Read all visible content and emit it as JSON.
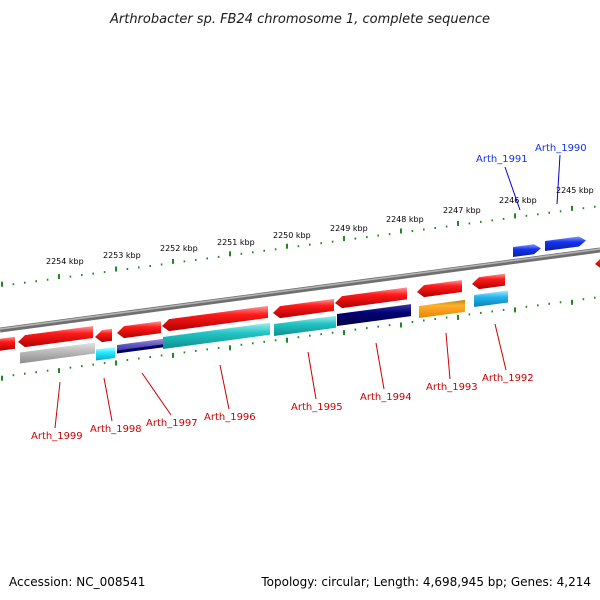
{
  "title": "Arthrobacter sp. FB24 chromosome 1, complete sequence",
  "footer": {
    "accession": "Accession: NC_008541",
    "summary": "Topology: circular; Length: 4,698,945 bp; Genes: 4,214"
  },
  "colors": {
    "backbone": "#888888",
    "tick": "#228822",
    "forward_gene": "#1133ee",
    "reverse_gene": "#ee1111",
    "reverse_label": "#cc0000",
    "forward_label": "#0000cc"
  },
  "kbp_labels": [
    "2254 kbp",
    "2253 kbp",
    "2252 kbp",
    "2251 kbp",
    "2250 kbp",
    "2249 kbp",
    "2248 kbp",
    "2247 kbp",
    "2246 kbp",
    "2245 kbp"
  ],
  "forward_genes": [
    {
      "label": "Arth_1991",
      "color": "#1133ee"
    },
    {
      "label": "Arth_1990",
      "color": "#1133ee"
    }
  ],
  "reverse_genes": [
    {
      "label": "Arth_1999"
    },
    {
      "label": "Arth_1998"
    },
    {
      "label": "Arth_1997"
    },
    {
      "label": "Arth_1996"
    },
    {
      "label": "Arth_1995"
    },
    {
      "label": "Arth_1994"
    },
    {
      "label": "Arth_1993"
    },
    {
      "label": "Arth_1992"
    }
  ]
}
